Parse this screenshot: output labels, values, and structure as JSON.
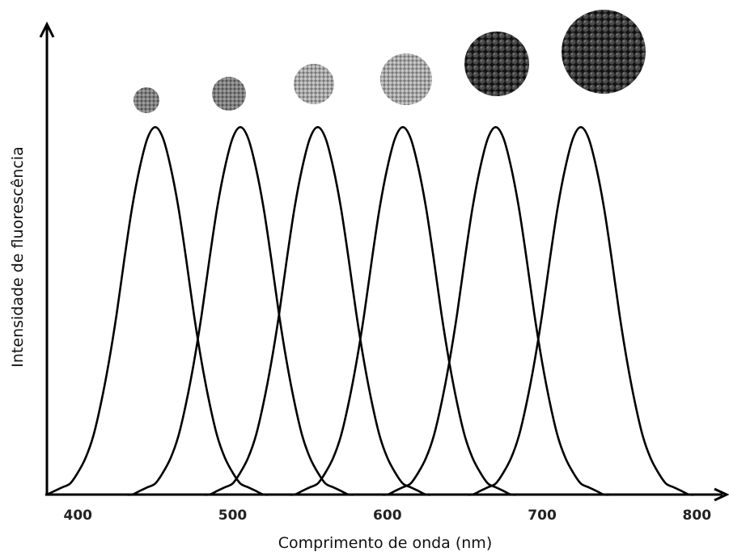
{
  "chart_data": {
    "type": "line",
    "x_label": "Comprimento de onda (nm)",
    "y_label": "Intensidade de fluorescência",
    "xlim": [
      380,
      815
    ],
    "ylim": [
      0,
      1.28
    ],
    "xticks": [
      400,
      500,
      600,
      700,
      800
    ],
    "x": [
      380,
      385,
      390,
      395,
      400,
      405,
      410,
      415,
      420,
      425,
      430,
      435,
      440,
      445,
      450,
      455,
      460,
      465,
      470,
      475,
      480,
      485,
      490,
      495,
      500,
      505,
      510,
      515,
      520,
      525,
      530,
      535,
      540,
      545,
      550,
      555,
      560,
      565,
      570,
      575,
      580,
      585,
      590,
      595,
      600,
      605,
      610,
      615,
      620,
      625,
      630,
      635,
      640,
      645,
      650,
      655,
      660,
      665,
      670,
      675,
      680,
      685,
      690,
      695,
      700,
      705,
      710,
      715,
      720,
      725,
      730,
      735,
      740,
      745,
      750,
      755,
      760,
      765,
      770,
      775,
      780,
      785,
      790,
      795,
      800,
      805,
      810
    ],
    "series": [
      {
        "color": "#000000",
        "values": [
          0,
          0.01,
          0.02,
          0.03,
          0.06,
          0.1,
          0.16,
          0.25,
          0.36,
          0.49,
          0.64,
          0.78,
          0.89,
          0.97,
          1,
          0.97,
          0.89,
          0.78,
          0.64,
          0.49,
          0.36,
          0.25,
          0.16,
          0.1,
          0.06,
          0.03,
          0.02,
          0.01,
          0,
          0,
          0,
          0,
          0,
          0,
          0,
          0,
          0,
          0,
          0,
          0,
          0,
          0,
          0,
          0,
          0,
          0,
          0,
          0,
          0,
          0,
          0,
          0,
          0,
          0,
          0,
          0,
          0,
          0,
          0,
          0,
          0,
          0,
          0,
          0,
          0,
          0,
          0,
          0,
          0,
          0,
          0,
          0,
          0,
          0,
          0,
          0,
          0,
          0,
          0,
          0,
          0,
          0,
          0,
          0,
          0,
          0,
          0
        ]
      },
      {
        "color": "#000000",
        "values": [
          0,
          0,
          0,
          0,
          0,
          0,
          0,
          0,
          0,
          0,
          0,
          0,
          0.01,
          0.02,
          0.03,
          0.06,
          0.1,
          0.16,
          0.25,
          0.36,
          0.49,
          0.64,
          0.78,
          0.89,
          0.97,
          1,
          0.97,
          0.89,
          0.78,
          0.64,
          0.49,
          0.36,
          0.25,
          0.16,
          0.1,
          0.06,
          0.03,
          0.02,
          0.01,
          0,
          0,
          0,
          0,
          0,
          0,
          0,
          0,
          0,
          0,
          0,
          0,
          0,
          0,
          0,
          0,
          0,
          0,
          0,
          0,
          0,
          0,
          0,
          0,
          0,
          0,
          0,
          0,
          0,
          0,
          0,
          0,
          0,
          0,
          0,
          0,
          0,
          0,
          0,
          0,
          0,
          0,
          0,
          0,
          0,
          0,
          0,
          0
        ]
      },
      {
        "color": "#000000",
        "values": [
          0,
          0,
          0,
          0,
          0,
          0,
          0,
          0,
          0,
          0,
          0,
          0,
          0,
          0,
          0,
          0,
          0,
          0,
          0,
          0,
          0,
          0,
          0.01,
          0.02,
          0.03,
          0.06,
          0.1,
          0.16,
          0.25,
          0.36,
          0.49,
          0.64,
          0.78,
          0.89,
          0.97,
          1,
          0.97,
          0.89,
          0.78,
          0.64,
          0.49,
          0.36,
          0.25,
          0.16,
          0.1,
          0.06,
          0.03,
          0.02,
          0.01,
          0,
          0,
          0,
          0,
          0,
          0,
          0,
          0,
          0,
          0,
          0,
          0,
          0,
          0,
          0,
          0,
          0,
          0,
          0,
          0,
          0,
          0,
          0,
          0,
          0,
          0,
          0,
          0,
          0,
          0,
          0,
          0,
          0,
          0,
          0,
          0,
          0,
          0
        ]
      },
      {
        "color": "#000000",
        "values": [
          0,
          0,
          0,
          0,
          0,
          0,
          0,
          0,
          0,
          0,
          0,
          0,
          0,
          0,
          0,
          0,
          0,
          0,
          0,
          0,
          0,
          0,
          0,
          0,
          0,
          0,
          0,
          0,
          0,
          0,
          0,
          0,
          0,
          0.01,
          0.02,
          0.03,
          0.06,
          0.1,
          0.16,
          0.25,
          0.36,
          0.49,
          0.64,
          0.78,
          0.89,
          0.97,
          1,
          0.97,
          0.89,
          0.78,
          0.64,
          0.49,
          0.36,
          0.25,
          0.16,
          0.1,
          0.06,
          0.03,
          0.02,
          0.01,
          0,
          0,
          0,
          0,
          0,
          0,
          0,
          0,
          0,
          0,
          0,
          0,
          0,
          0,
          0,
          0,
          0,
          0,
          0,
          0,
          0,
          0,
          0,
          0,
          0,
          0,
          0
        ]
      },
      {
        "color": "#000000",
        "values": [
          0,
          0,
          0,
          0,
          0,
          0,
          0,
          0,
          0,
          0,
          0,
          0,
          0,
          0,
          0,
          0,
          0,
          0,
          0,
          0,
          0,
          0,
          0,
          0,
          0,
          0,
          0,
          0,
          0,
          0,
          0,
          0,
          0,
          0,
          0,
          0,
          0,
          0,
          0,
          0,
          0,
          0,
          0,
          0,
          0,
          0.01,
          0.02,
          0.03,
          0.06,
          0.1,
          0.16,
          0.25,
          0.36,
          0.49,
          0.64,
          0.78,
          0.89,
          0.97,
          1,
          0.97,
          0.89,
          0.78,
          0.64,
          0.49,
          0.36,
          0.25,
          0.16,
          0.1,
          0.06,
          0.03,
          0.02,
          0.01,
          0,
          0,
          0,
          0,
          0,
          0,
          0,
          0,
          0,
          0,
          0,
          0,
          0,
          0,
          0
        ]
      },
      {
        "color": "#000000",
        "values": [
          0,
          0,
          0,
          0,
          0,
          0,
          0,
          0,
          0,
          0,
          0,
          0,
          0,
          0,
          0,
          0,
          0,
          0,
          0,
          0,
          0,
          0,
          0,
          0,
          0,
          0,
          0,
          0,
          0,
          0,
          0,
          0,
          0,
          0,
          0,
          0,
          0,
          0,
          0,
          0,
          0,
          0,
          0,
          0,
          0,
          0,
          0,
          0,
          0,
          0,
          0,
          0,
          0,
          0,
          0,
          0,
          0.01,
          0.02,
          0.03,
          0.06,
          0.1,
          0.16,
          0.25,
          0.36,
          0.49,
          0.64,
          0.78,
          0.89,
          0.97,
          1,
          0.97,
          0.89,
          0.78,
          0.64,
          0.49,
          0.36,
          0.25,
          0.16,
          0.1,
          0.06,
          0.03,
          0.02,
          0.01,
          0,
          0,
          0,
          0
        ]
      }
    ]
  }
}
